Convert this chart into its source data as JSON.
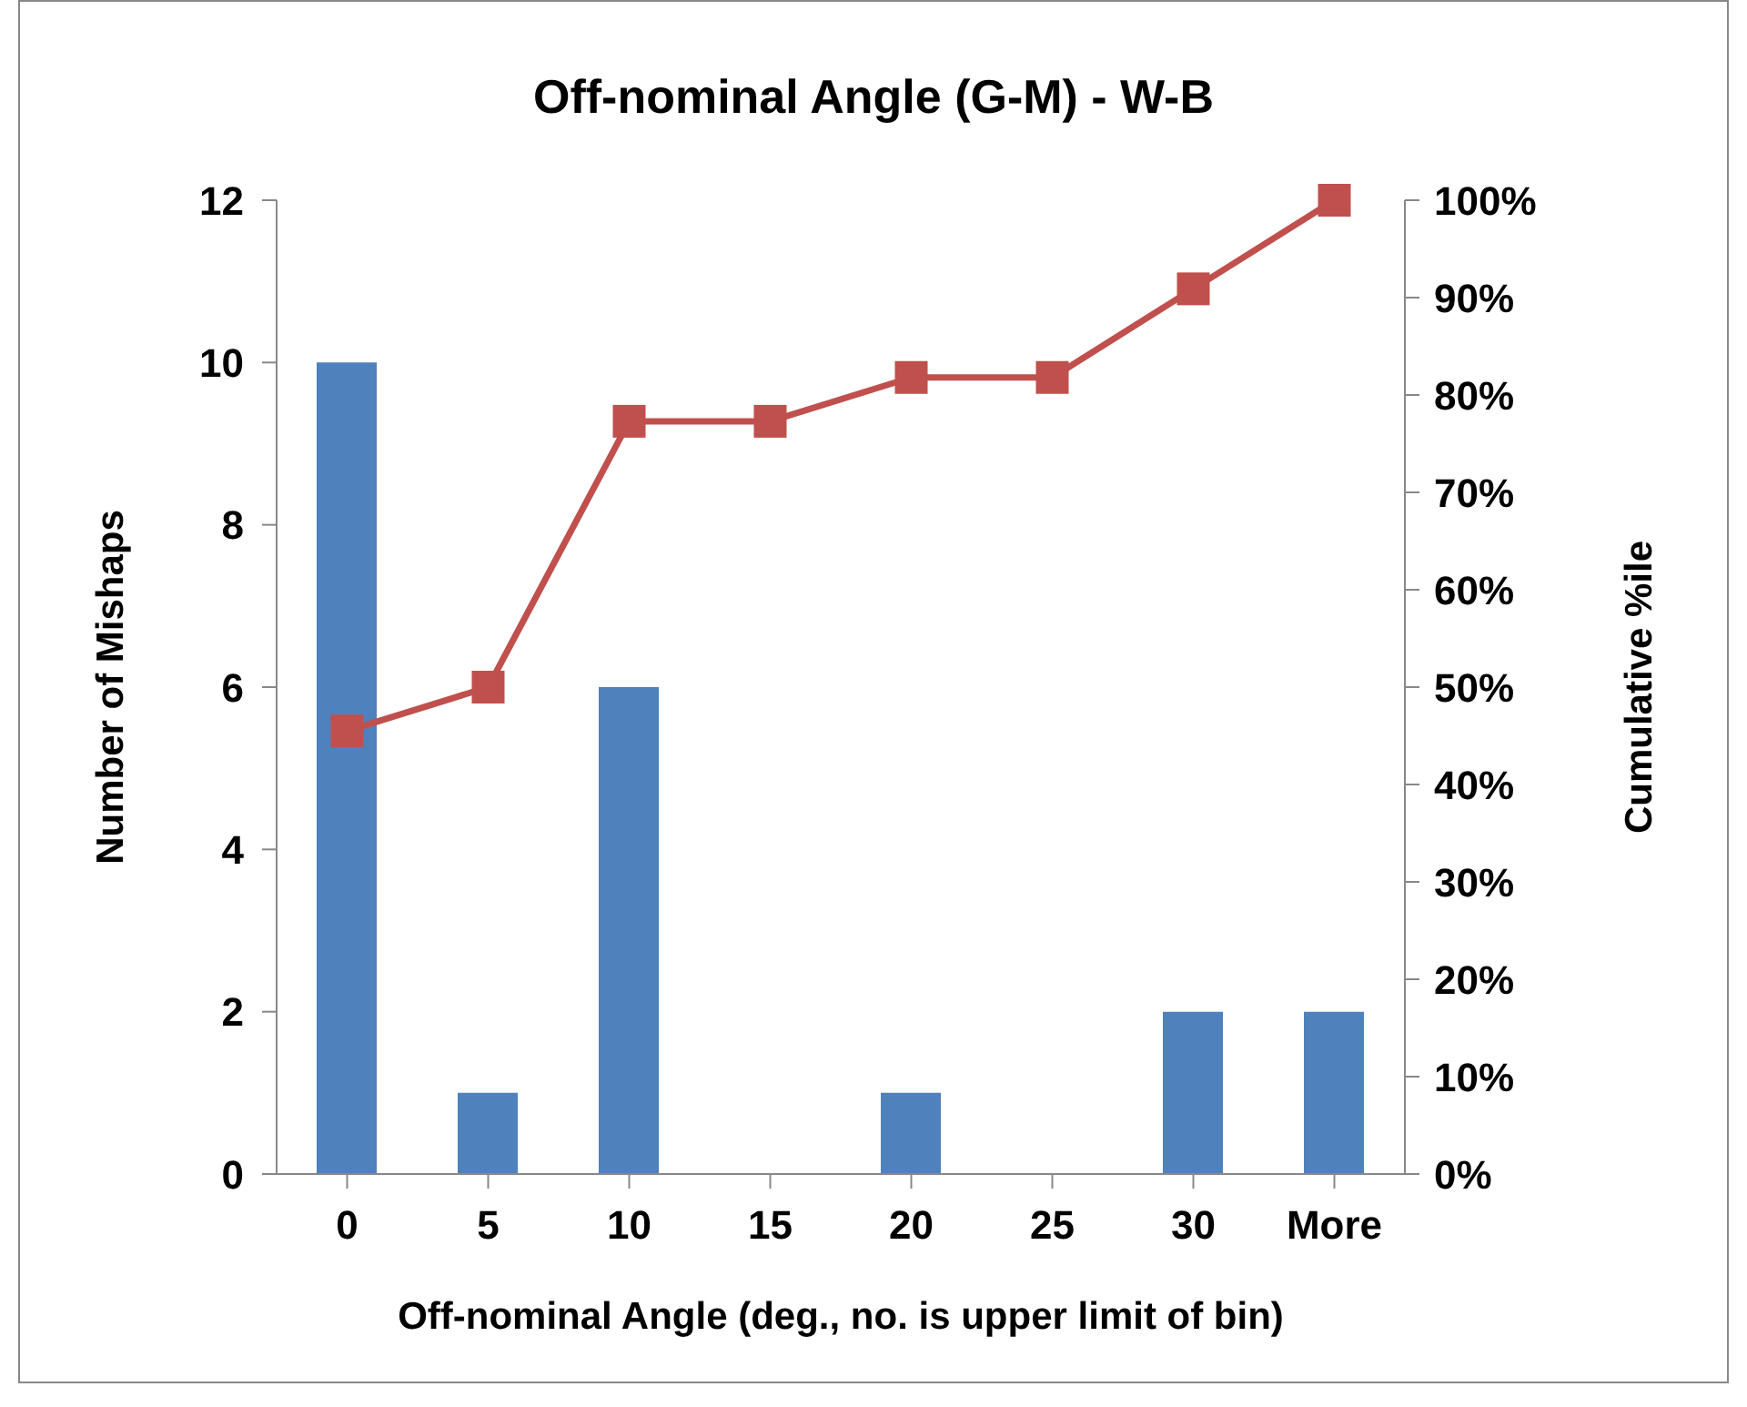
{
  "chart_data": {
    "type": "bar",
    "title": "Off-nominal Angle (G-M) - W-B",
    "xlabel": "Off-nominal Angle (deg., no. is upper limit of bin)",
    "ylabel": "Number of Mishaps",
    "y2label": "Cumulative %ile",
    "categories": [
      "0",
      "5",
      "10",
      "15",
      "20",
      "25",
      "30",
      "More"
    ],
    "series": [
      {
        "color": "#4f81bd",
        "values": [
          10,
          1,
          6,
          0,
          1,
          0,
          2,
          2
        ]
      },
      {
        "type": "line",
        "axis": "y2",
        "color": "#c0504d",
        "marker": "square",
        "values": [
          45.5,
          50,
          77.3,
          77.3,
          81.8,
          81.8,
          90.9,
          100
        ]
      }
    ],
    "ylim": [
      0,
      12
    ],
    "yticks": [
      0,
      2,
      4,
      6,
      8,
      10,
      12
    ],
    "y2lim": [
      0,
      100
    ],
    "y2ticks": [
      {
        "value": 0,
        "label": "0%"
      },
      {
        "value": 10,
        "label": "10%"
      },
      {
        "value": 20,
        "label": "20%"
      },
      {
        "value": 30,
        "label": "30%"
      },
      {
        "value": 40,
        "label": "40%"
      },
      {
        "value": 50,
        "label": "50%"
      },
      {
        "value": 60,
        "label": "60%"
      },
      {
        "value": 70,
        "label": "70%"
      },
      {
        "value": 80,
        "label": "80%"
      },
      {
        "value": 90,
        "label": "90%"
      },
      {
        "value": 100,
        "label": "100%"
      }
    ],
    "grid": false,
    "legend": false
  }
}
